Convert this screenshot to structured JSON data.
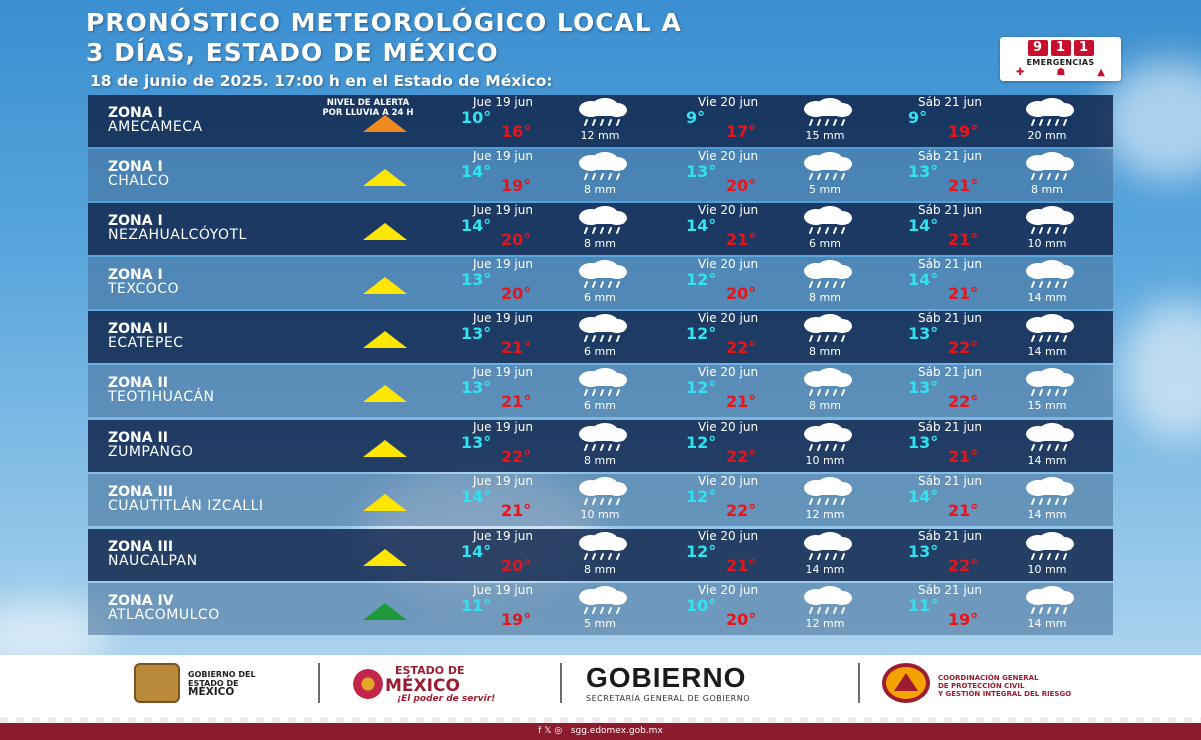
{
  "header": {
    "title_line1": "PRONÓSTICO METEOROLÓGICO LOCAL A",
    "title_line2": "3 DÍAS, ESTADO DE MÉXICO",
    "subtitle": "18 de junio de 2025.  17:00 h en el Estado de México:",
    "alert_label_line1": "NIVEL DE ALERTA",
    "alert_label_line2": "POR LLUVIA A 24  H"
  },
  "badge": {
    "digits": [
      "9",
      "1",
      "1"
    ],
    "label": "EMERGENCIAS",
    "icons": [
      "✚",
      "☗",
      "▲"
    ]
  },
  "colors": {
    "alert_yellow": "#ffe600",
    "alert_orange": "#f08a1e",
    "alert_green": "#1e9a3d",
    "temp_min": "#2fe3f0",
    "temp_max": "#e8141a"
  },
  "rows": [
    {
      "zone": "ZONA I",
      "city": "AMECAMECA",
      "alert": "orange",
      "days": [
        {
          "label": "Jue 19 jun",
          "min": "10°",
          "max": "16°",
          "rain": "12 mm"
        },
        {
          "label": "Vie 20 jun",
          "min": "9°",
          "max": "17°",
          "rain": "15 mm"
        },
        {
          "label": "Sáb 21 jun",
          "min": "9°",
          "max": "19°",
          "rain": "20 mm"
        }
      ]
    },
    {
      "zone": "ZONA I",
      "city": "CHALCO",
      "alert": "yellow",
      "days": [
        {
          "label": "Jue 19 jun",
          "min": "14°",
          "max": "19°",
          "rain": "8 mm"
        },
        {
          "label": "Vie 20 jun",
          "min": "13°",
          "max": "20°",
          "rain": "5 mm"
        },
        {
          "label": "Sáb 21 jun",
          "min": "13°",
          "max": "21°",
          "rain": "8 mm"
        }
      ]
    },
    {
      "zone": "ZONA I",
      "city": "NEZAHUALCÓYOTL",
      "alert": "yellow",
      "days": [
        {
          "label": "Jue 19 jun",
          "min": "14°",
          "max": "20°",
          "rain": "8 mm"
        },
        {
          "label": "Vie 20 jun",
          "min": "14°",
          "max": "21°",
          "rain": "6 mm"
        },
        {
          "label": "Sáb 21 jun",
          "min": "14°",
          "max": "21°",
          "rain": "10 mm"
        }
      ]
    },
    {
      "zone": "ZONA I",
      "city": "TEXCOCO",
      "alert": "yellow",
      "days": [
        {
          "label": "Jue 19 jun",
          "min": "13°",
          "max": "20°",
          "rain": "6 mm"
        },
        {
          "label": "Vie 20 jun",
          "min": "12°",
          "max": "20°",
          "rain": "8 mm"
        },
        {
          "label": "Sáb 21 jun",
          "min": "14°",
          "max": "21°",
          "rain": "14 mm"
        }
      ]
    },
    {
      "zone": "ZONA II",
      "city": "ECATEPEC",
      "alert": "yellow",
      "days": [
        {
          "label": "Jue 19 jun",
          "min": "13°",
          "max": "21°",
          "rain": "6 mm"
        },
        {
          "label": "Vie 20 jun",
          "min": "12°",
          "max": "22°",
          "rain": "8 mm"
        },
        {
          "label": "Sáb 21 jun",
          "min": "13°",
          "max": "22°",
          "rain": "14 mm"
        }
      ]
    },
    {
      "zone": "ZONA II",
      "city": "TEOTIHUACÁN",
      "alert": "yellow",
      "days": [
        {
          "label": "Jue 19 jun",
          "min": "13°",
          "max": "21°",
          "rain": "6 mm"
        },
        {
          "label": "Vie 20 jun",
          "min": "12°",
          "max": "21°",
          "rain": "8 mm"
        },
        {
          "label": "Sáb 21 jun",
          "min": "13°",
          "max": "22°",
          "rain": "15 mm"
        }
      ]
    },
    {
      "zone": "ZONA II",
      "city": "ZUMPANGO",
      "alert": "yellow",
      "days": [
        {
          "label": "Jue 19 jun",
          "min": "13°",
          "max": "22°",
          "rain": "8 mm"
        },
        {
          "label": "Vie 20 jun",
          "min": "12°",
          "max": "22°",
          "rain": "10 mm"
        },
        {
          "label": "Sáb 21 jun",
          "min": "13°",
          "max": "21°",
          "rain": "14 mm"
        }
      ]
    },
    {
      "zone": "ZONA III",
      "city": "CUAUTITLÁN IZCALLI",
      "alert": "yellow",
      "days": [
        {
          "label": "Jue 19 jun",
          "min": "14°",
          "max": "21°",
          "rain": "10 mm"
        },
        {
          "label": "Vie 20 jun",
          "min": "12°",
          "max": "22°",
          "rain": "12 mm"
        },
        {
          "label": "Sáb 21 jun",
          "min": "14°",
          "max": "21°",
          "rain": "14 mm"
        }
      ]
    },
    {
      "zone": "ZONA III",
      "city": "NAUCALPAN",
      "alert": "yellow",
      "days": [
        {
          "label": "Jue 19 jun",
          "min": "14°",
          "max": "20°",
          "rain": "8 mm"
        },
        {
          "label": "Vie 20 jun",
          "min": "12°",
          "max": "21°",
          "rain": "14 mm"
        },
        {
          "label": "Sáb 21 jun",
          "min": "13°",
          "max": "22°",
          "rain": "10 mm"
        }
      ]
    },
    {
      "zone": "ZONA IV",
      "city": "ATLACOMULCO",
      "alert": "green",
      "days": [
        {
          "label": "Jue 19 jun",
          "min": "11°",
          "max": "19°",
          "rain": "5 mm"
        },
        {
          "label": "Vie 20 jun",
          "min": "10°",
          "max": "20°",
          "rain": "12 mm"
        },
        {
          "label": "Sáb 21 jun",
          "min": "11°",
          "max": "19°",
          "rain": "14 mm"
        }
      ]
    }
  ],
  "footer": {
    "gob_edo_line1": "GOBIERNO DEL",
    "gob_edo_line2": "ESTADO DE",
    "gob_edo_line3": "MÉXICO",
    "edomex_top": "ESTADO DE",
    "edomex_main": "MÉXICO",
    "edomex_slogan": "¡El poder de servir!",
    "gobierno": "GOBIERNO",
    "gobierno_sub": "SECRETARÍA GENERAL DE GOBIERNO",
    "pc_line1": "COORDINACIÓN GENERAL",
    "pc_line2": "DE PROTECCIÓN CIVIL",
    "pc_line3": "Y GESTIÓN INTEGRAL DEL RIESGO",
    "social_icons": "f  𝕏  ◎",
    "website": "sgg.edomex.gob.mx"
  }
}
